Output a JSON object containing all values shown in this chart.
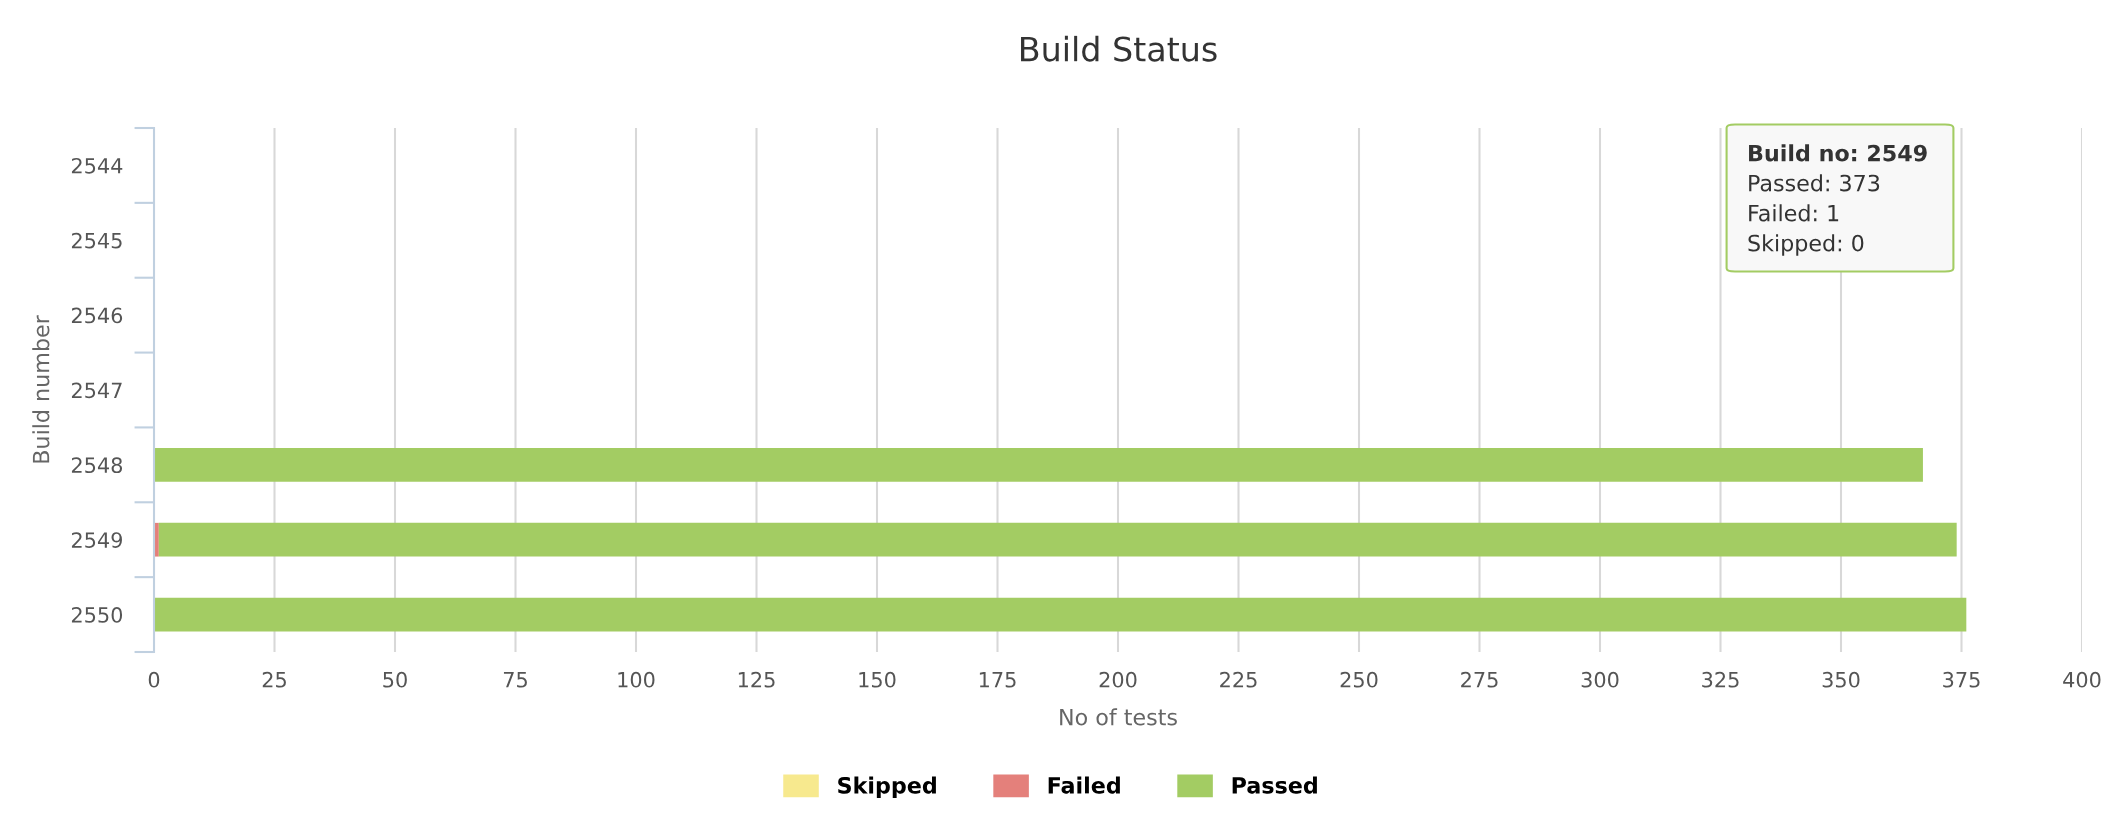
{
  "chart_data": {
    "type": "bar",
    "orientation": "horizontal",
    "stacked": true,
    "title": "Build Status",
    "xlabel": "No of tests",
    "ylabel": "Build number",
    "categories": [
      "2544",
      "2545",
      "2546",
      "2547",
      "2548",
      "2549",
      "2550"
    ],
    "series": [
      {
        "name": "Skipped",
        "color": "#f7e98e",
        "values": [
          0,
          0,
          0,
          0,
          0,
          0,
          0
        ]
      },
      {
        "name": "Failed",
        "color": "#e4807b",
        "values": [
          0,
          0,
          0,
          0,
          0,
          1,
          0
        ]
      },
      {
        "name": "Passed",
        "color": "#a3cc63",
        "values": [
          0,
          0,
          0,
          0,
          367,
          373,
          376
        ]
      }
    ],
    "xlim": [
      0,
      400
    ],
    "xticks": [
      0,
      25,
      50,
      75,
      100,
      125,
      150,
      175,
      200,
      225,
      250,
      275,
      300,
      325,
      350,
      375,
      400
    ],
    "grid": "x",
    "legend": "bottom",
    "annotations": [
      "Build no: 2549",
      "Passed: 373",
      "Failed: 1",
      "Skipped: 0"
    ]
  }
}
